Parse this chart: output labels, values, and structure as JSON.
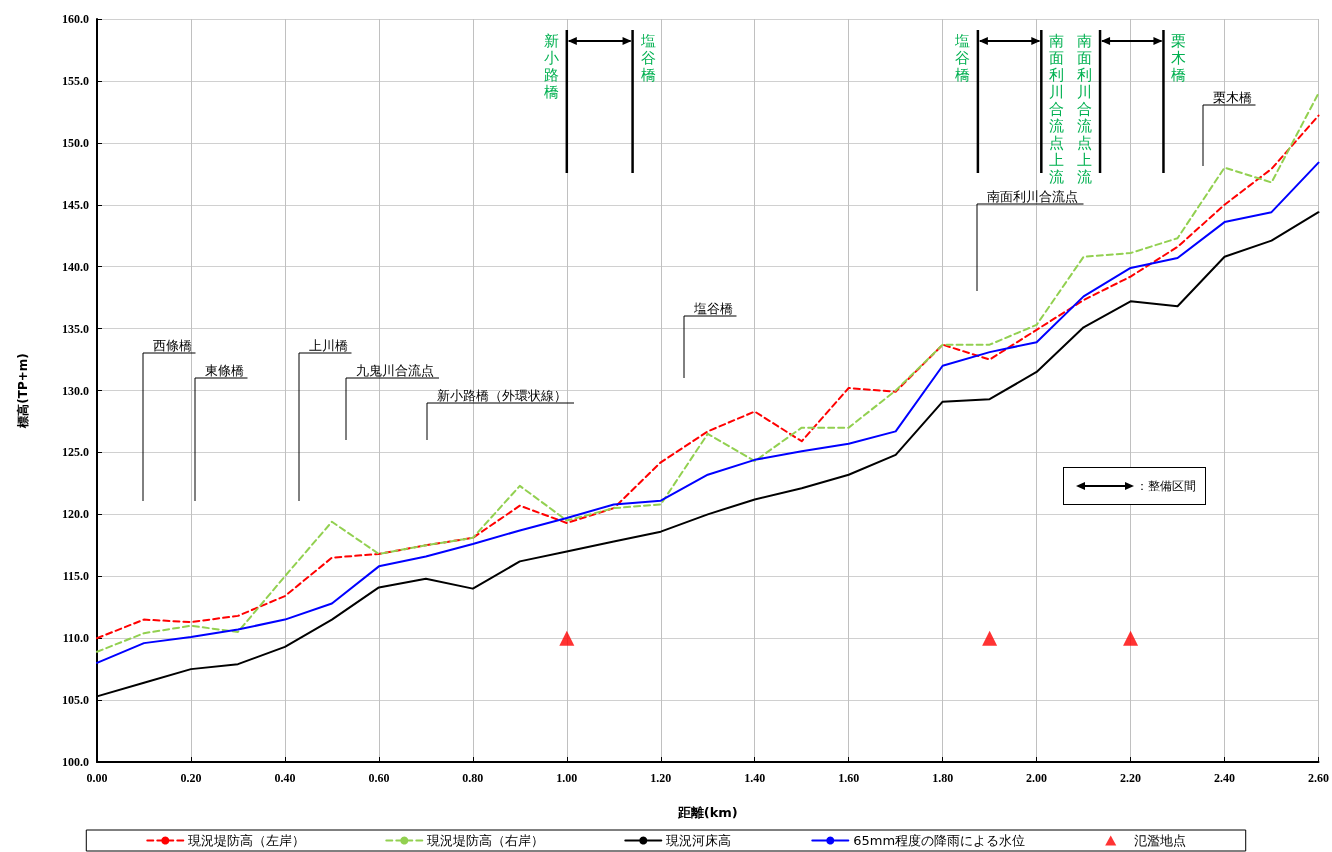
{
  "chart_data": {
    "type": "line",
    "xlabel": "距離(km)",
    "ylabel": "標高(TP+m)",
    "x": [
      0.0,
      0.1,
      0.2,
      0.3,
      0.4,
      0.5,
      0.6,
      0.7,
      0.8,
      0.9,
      1.0,
      1.1,
      1.2,
      1.3,
      1.4,
      1.5,
      1.6,
      1.7,
      1.8,
      1.9,
      2.0,
      2.1,
      2.2,
      2.3,
      2.4,
      2.5,
      2.6
    ],
    "xlim": [
      0,
      2.6
    ],
    "xticks": [
      {
        "value": 0,
        "label": "0.00"
      },
      {
        "value": 0.2,
        "label": "0.20"
      },
      {
        "value": 0.4,
        "label": "0.40"
      },
      {
        "value": 0.6,
        "label": "0.60"
      },
      {
        "value": 0.8,
        "label": "0.80"
      },
      {
        "value": 1.0,
        "label": "1.00"
      },
      {
        "value": 1.2,
        "label": "1.20"
      },
      {
        "value": 1.4,
        "label": "1.40"
      },
      {
        "value": 1.6,
        "label": "1.60"
      },
      {
        "value": 1.8,
        "label": "1.80"
      },
      {
        "value": 2.0,
        "label": "2.00"
      },
      {
        "value": 2.2,
        "label": "2.20"
      },
      {
        "value": 2.4,
        "label": "2.40"
      },
      {
        "value": 2.6,
        "label": "2.60"
      }
    ],
    "ylim": [
      100,
      160
    ],
    "yticks": [
      {
        "value": 100,
        "label": "100.0"
      },
      {
        "value": 105,
        "label": "105.0"
      },
      {
        "value": 110,
        "label": "110.0"
      },
      {
        "value": 115,
        "label": "115.0"
      },
      {
        "value": 120,
        "label": "120.0"
      },
      {
        "value": 125,
        "label": "125.0"
      },
      {
        "value": 130,
        "label": "130.0"
      },
      {
        "value": 135,
        "label": "135.0"
      },
      {
        "value": 140,
        "label": "140.0"
      },
      {
        "value": 145,
        "label": "145.0"
      },
      {
        "value": 150,
        "label": "150.0"
      },
      {
        "value": 155,
        "label": "155.0"
      },
      {
        "value": 160,
        "label": "160.0"
      }
    ],
    "grid": true,
    "legend": "bottom",
    "series": [
      {
        "name": "現況堤防高（左岸）",
        "color": "#ff0000",
        "line_style": "dashed",
        "marker": "none",
        "values": [
          110.0,
          111.5,
          111.3,
          111.8,
          113.4,
          116.5,
          116.8,
          117.5,
          118.1,
          120.7,
          119.3,
          120.5,
          124.2,
          126.7,
          128.3,
          125.9,
          130.2,
          129.9,
          133.7,
          132.5,
          134.9,
          137.3,
          139.2,
          141.6,
          145.0,
          147.9,
          152.2
        ]
      },
      {
        "name": "現況堤防高（右岸）",
        "color": "#92d050",
        "line_style": "dashed",
        "marker": "none",
        "values": [
          108.9,
          110.4,
          111.0,
          110.5,
          115.0,
          119.4,
          116.8,
          117.5,
          118.1,
          122.3,
          119.5,
          120.5,
          120.8,
          126.5,
          124.3,
          127.0,
          127.0,
          130.0,
          133.7,
          133.7,
          135.3,
          140.8,
          141.1,
          142.3,
          148.0,
          146.8,
          154.0
        ]
      },
      {
        "name": "現況河床高",
        "color": "#000000",
        "line_style": "solid",
        "marker": "none",
        "values": [
          105.3,
          106.4,
          107.5,
          107.9,
          109.3,
          111.5,
          114.1,
          114.8,
          114.0,
          116.2,
          117.0,
          117.8,
          118.6,
          120.0,
          121.2,
          122.1,
          123.2,
          124.8,
          129.1,
          129.3,
          131.5,
          135.1,
          137.2,
          136.8,
          140.8,
          142.1,
          144.4
        ]
      },
      {
        "name": "65mm程度の降雨による水位",
        "color": "#0000ff",
        "line_style": "solid",
        "marker": "none",
        "values": [
          108.0,
          109.6,
          110.1,
          110.7,
          111.5,
          112.8,
          115.8,
          116.6,
          117.6,
          118.7,
          119.7,
          120.8,
          121.1,
          123.2,
          124.4,
          125.1,
          125.7,
          126.7,
          132.0,
          133.1,
          133.9,
          137.6,
          139.9,
          140.7,
          143.6,
          144.4,
          148.4
        ]
      },
      {
        "name": "氾濫地点",
        "type": "scatter",
        "color": "#ff0000",
        "marker": "triangle",
        "x": [
          1.0,
          1.9,
          2.2
        ],
        "values": [
          110,
          110,
          110
        ]
      }
    ],
    "ref_lines": [
      {
        "axis": "x",
        "value": 1.0,
        "label": "新小路橋"
      },
      {
        "axis": "x",
        "value": 1.14,
        "label": "塩谷橋"
      },
      {
        "axis": "x",
        "value": 1.875,
        "label": "塩谷橋"
      },
      {
        "axis": "x",
        "value": 2.01,
        "label": "南面利川合流点上流"
      },
      {
        "axis": "x",
        "value": 2.135,
        "label": "南面利川合流点上流"
      },
      {
        "axis": "x",
        "value": 2.27,
        "label": "栗木橋"
      }
    ],
    "annotations": [
      "西條橋",
      "東條橋",
      "上川橋",
      "九鬼川合流点",
      "新小路橋（外環状線）",
      "塩谷橋",
      "南面利川合流点",
      "栗木橋",
      "：整備区間"
    ]
  }
}
